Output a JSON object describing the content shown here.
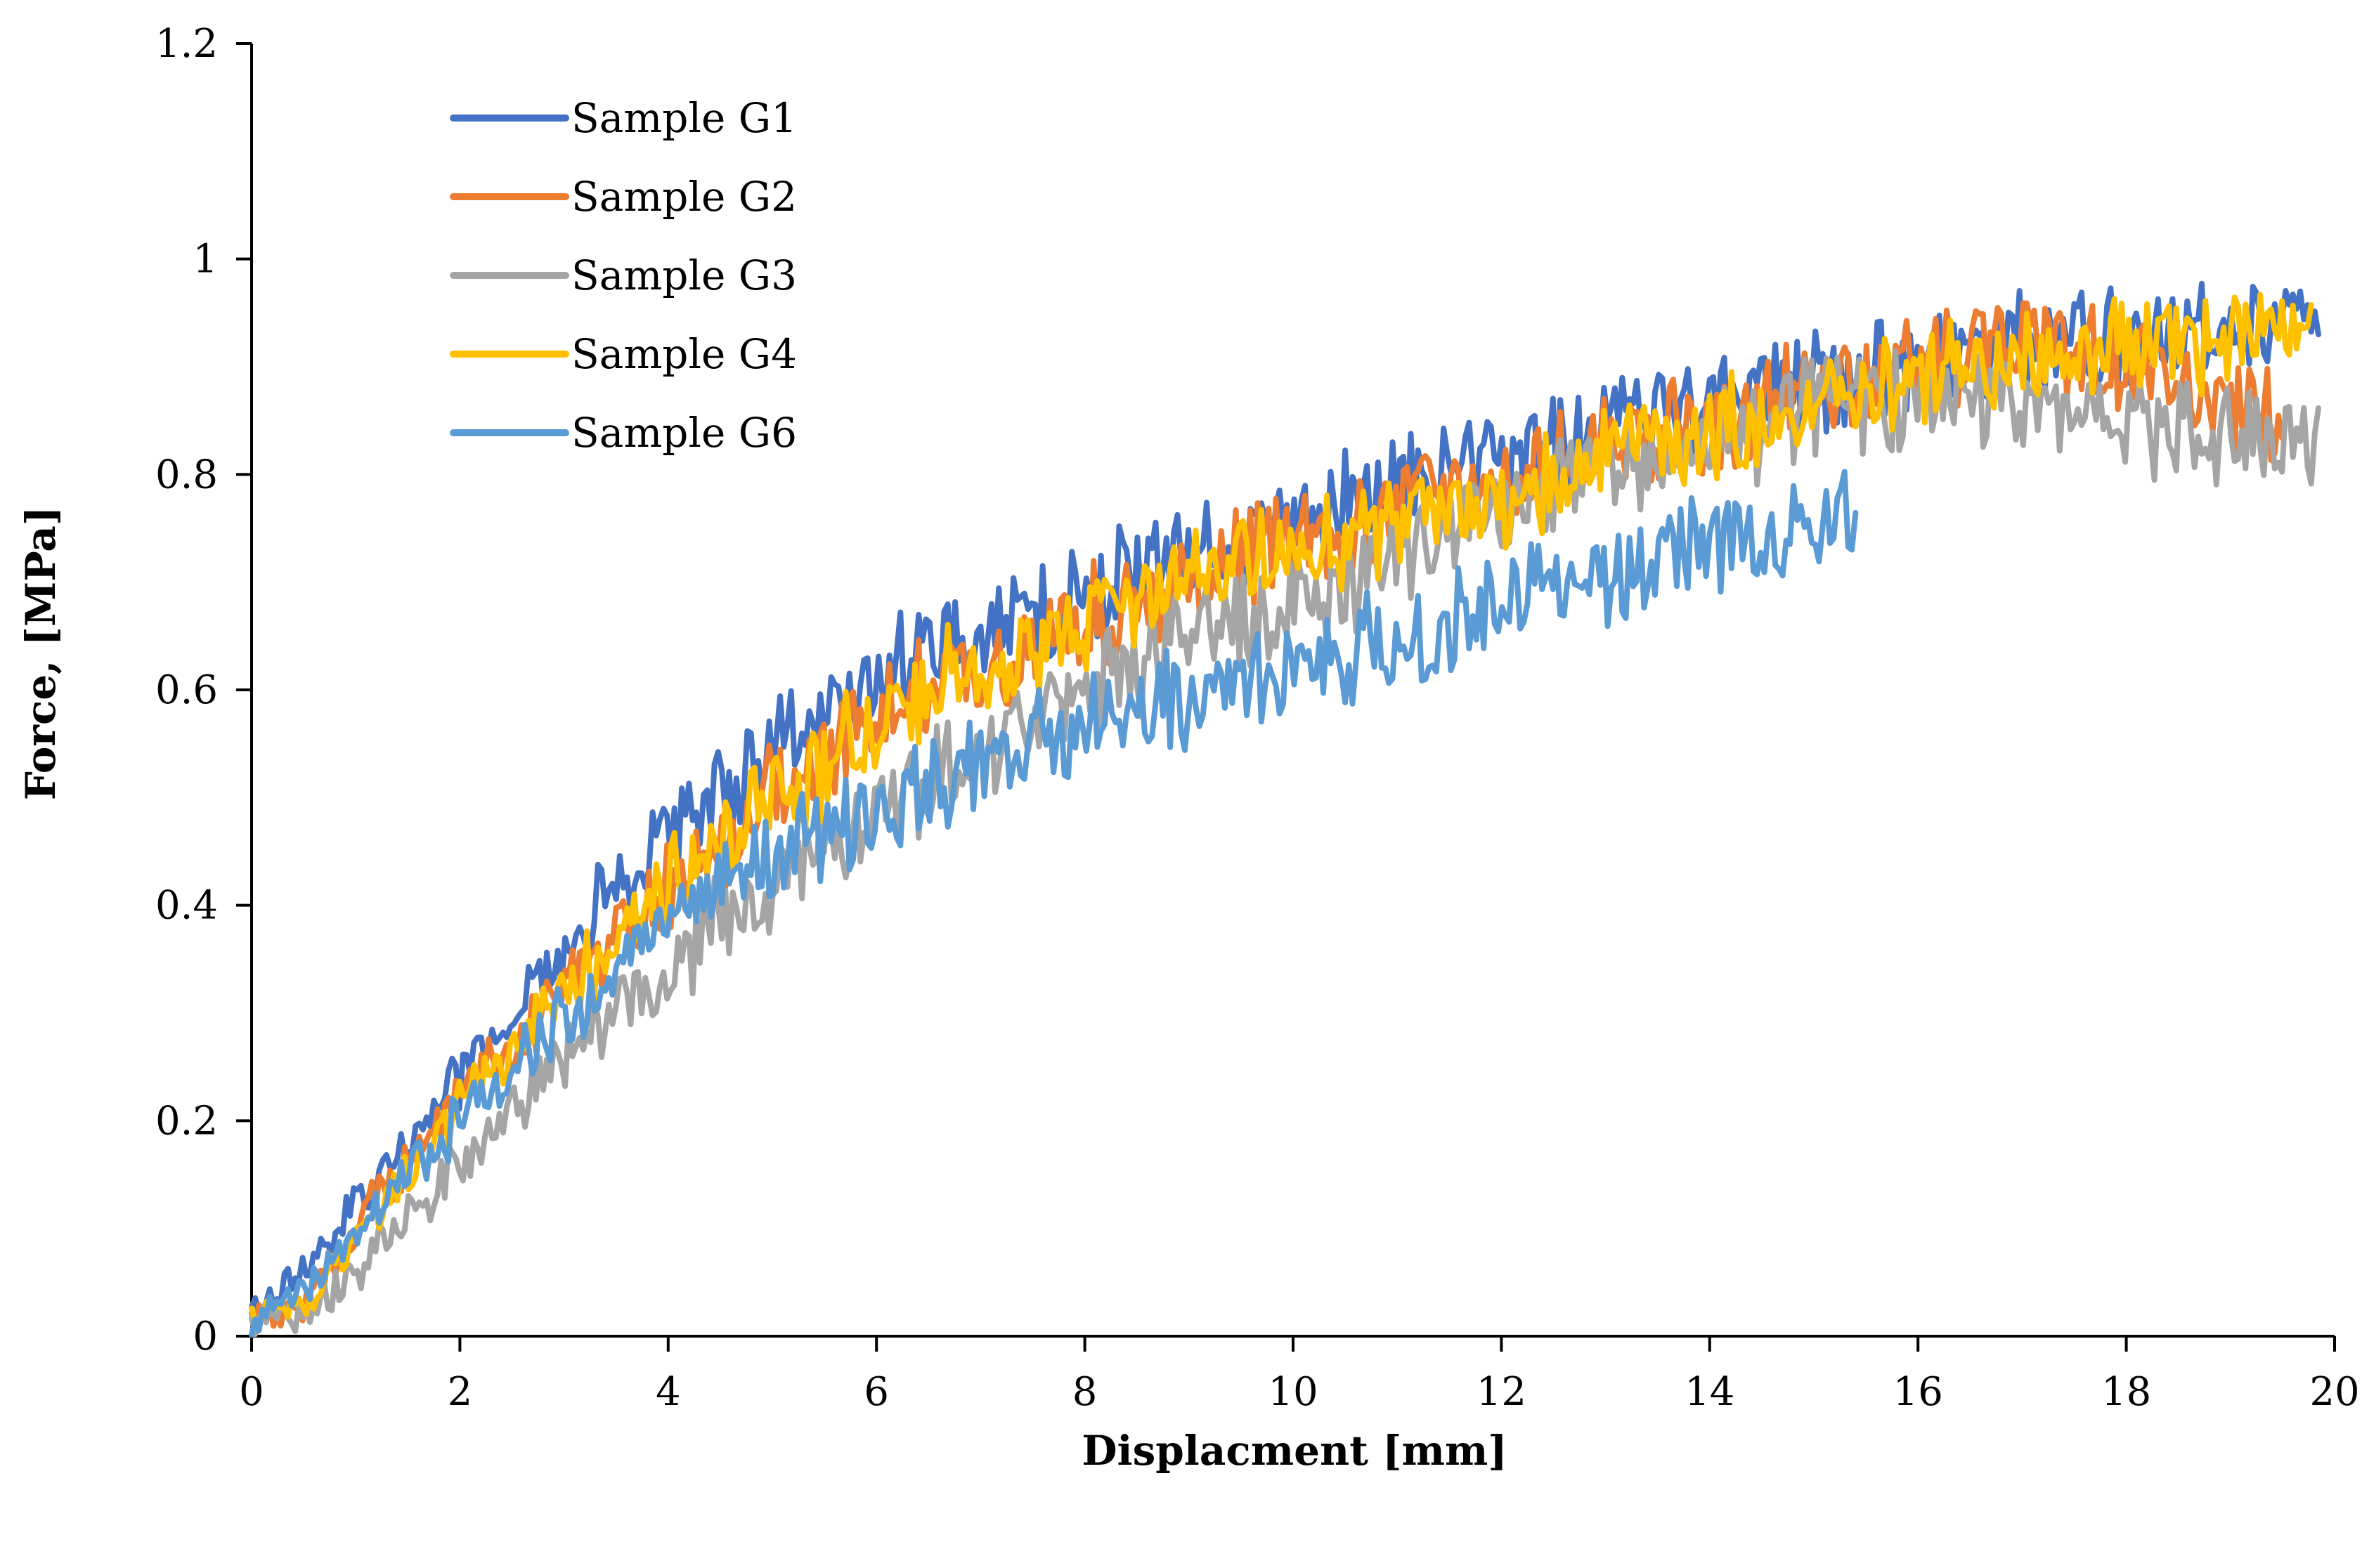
{
  "chart_data": {
    "type": "line",
    "title": "",
    "xlabel": "Displacment [mm]",
    "ylabel": "Force, [MPa]",
    "xlim": [
      0,
      20
    ],
    "ylim": [
      0,
      1.2
    ],
    "xticks": [
      0,
      2,
      4,
      6,
      8,
      10,
      12,
      14,
      16,
      18,
      20
    ],
    "yticks": [
      0,
      0.2,
      0.4,
      0.6,
      0.8,
      1,
      1.2
    ],
    "xtick_labels": [
      "0",
      "2",
      "4",
      "6",
      "8",
      "10",
      "12",
      "14",
      "16",
      "18",
      "20"
    ],
    "ytick_labels": [
      "0",
      "0.2",
      "0.4",
      "0.6",
      "0.8",
      "1",
      "1.2"
    ],
    "grid": false,
    "legend_position": "top-left",
    "series": [
      {
        "name": "Sample G1",
        "color": "#4472C4",
        "x": [
          0,
          0.5,
          1,
          1.5,
          2,
          2.5,
          3,
          3.5,
          4,
          4.5,
          5,
          5.5,
          6,
          6.5,
          7,
          7.5,
          8,
          8.5,
          9,
          9.5,
          10,
          10.5,
          11,
          11.5,
          12,
          12.5,
          13,
          13.5,
          14,
          14.5,
          15,
          15.5,
          16,
          16.5,
          17,
          17.5,
          18,
          18.5,
          19,
          19.5,
          19.85
        ],
        "y": [
          0.02,
          0.06,
          0.12,
          0.18,
          0.24,
          0.3,
          0.36,
          0.42,
          0.46,
          0.5,
          0.54,
          0.58,
          0.61,
          0.63,
          0.65,
          0.67,
          0.69,
          0.71,
          0.73,
          0.745,
          0.76,
          0.775,
          0.79,
          0.805,
          0.815,
          0.83,
          0.845,
          0.855,
          0.865,
          0.875,
          0.885,
          0.895,
          0.905,
          0.915,
          0.92,
          0.925,
          0.93,
          0.935,
          0.94,
          0.945,
          0.95
        ]
      },
      {
        "name": "Sample G2",
        "color": "#ED7D31",
        "x": [
          0,
          0.5,
          1,
          1.5,
          2,
          2.5,
          3,
          3.5,
          4,
          4.5,
          5,
          5.5,
          6,
          6.5,
          7,
          7.5,
          8,
          8.5,
          9,
          9.5,
          10,
          10.5,
          11,
          11.5,
          12,
          12.5,
          13,
          13.5,
          14,
          14.5,
          15,
          15.5,
          16,
          16.5,
          17,
          17.5,
          18,
          18.5,
          19,
          19.5
        ],
        "y": [
          0.01,
          0.03,
          0.1,
          0.16,
          0.22,
          0.27,
          0.32,
          0.37,
          0.41,
          0.46,
          0.5,
          0.54,
          0.57,
          0.6,
          0.62,
          0.645,
          0.665,
          0.685,
          0.7,
          0.72,
          0.74,
          0.755,
          0.77,
          0.785,
          0.8,
          0.815,
          0.83,
          0.84,
          0.85,
          0.865,
          0.88,
          0.89,
          0.905,
          0.92,
          0.93,
          0.92,
          0.9,
          0.88,
          0.86,
          0.85
        ]
      },
      {
        "name": "Sample G3",
        "color": "#A5A5A5",
        "x": [
          0,
          0.5,
          1,
          1.5,
          2,
          2.5,
          3,
          3.5,
          4,
          4.5,
          5,
          5.5,
          6,
          6.5,
          7,
          7.5,
          8,
          8.5,
          9,
          9.5,
          10,
          10.5,
          11,
          11.5,
          12,
          12.5,
          13,
          13.5,
          14,
          14.5,
          15,
          15.5,
          16,
          16.5,
          17,
          17.5,
          18,
          18.5,
          19,
          19.5,
          19.85
        ],
        "y": [
          0.01,
          0.02,
          0.06,
          0.11,
          0.16,
          0.21,
          0.26,
          0.3,
          0.34,
          0.38,
          0.42,
          0.46,
          0.49,
          0.52,
          0.55,
          0.58,
          0.6,
          0.625,
          0.645,
          0.665,
          0.685,
          0.705,
          0.725,
          0.745,
          0.765,
          0.785,
          0.8,
          0.815,
          0.83,
          0.845,
          0.86,
          0.87,
          0.875,
          0.87,
          0.865,
          0.855,
          0.845,
          0.84,
          0.835,
          0.835,
          0.835
        ]
      },
      {
        "name": "Sample G4",
        "color": "#FFC000",
        "x": [
          0,
          0.5,
          1,
          1.5,
          2,
          2.5,
          3,
          3.5,
          4,
          4.5,
          5,
          5.5,
          6,
          6.5,
          7,
          7.5,
          8,
          8.5,
          9,
          9.5,
          10,
          10.5,
          11,
          11.5,
          12,
          12.5,
          13,
          13.5,
          14,
          14.5,
          15,
          15.5,
          16,
          16.5,
          17,
          17.5,
          18,
          18.5,
          19,
          19.5,
          19.8
        ],
        "y": [
          0.015,
          0.03,
          0.09,
          0.15,
          0.21,
          0.27,
          0.32,
          0.37,
          0.42,
          0.46,
          0.5,
          0.53,
          0.57,
          0.6,
          0.62,
          0.64,
          0.66,
          0.68,
          0.695,
          0.71,
          0.725,
          0.74,
          0.755,
          0.77,
          0.78,
          0.795,
          0.81,
          0.825,
          0.84,
          0.855,
          0.87,
          0.88,
          0.89,
          0.9,
          0.905,
          0.91,
          0.915,
          0.92,
          0.925,
          0.93,
          0.935
        ]
      },
      {
        "name": "Sample G6",
        "color": "#5B9BD5",
        "x": [
          0,
          0.5,
          1,
          1.5,
          2,
          2.5,
          3,
          3.5,
          4,
          4.5,
          5,
          5.5,
          6,
          6.5,
          7,
          7.5,
          8,
          8.5,
          9,
          9.5,
          10,
          10.5,
          11,
          11.5,
          12,
          12.5,
          13,
          13.5,
          14,
          14.5,
          15,
          15.4
        ],
        "y": [
          0.01,
          0.04,
          0.1,
          0.15,
          0.2,
          0.25,
          0.29,
          0.34,
          0.38,
          0.42,
          0.45,
          0.47,
          0.49,
          0.51,
          0.53,
          0.545,
          0.56,
          0.575,
          0.59,
          0.605,
          0.62,
          0.635,
          0.65,
          0.665,
          0.68,
          0.695,
          0.71,
          0.725,
          0.735,
          0.745,
          0.755,
          0.765
        ]
      }
    ]
  }
}
